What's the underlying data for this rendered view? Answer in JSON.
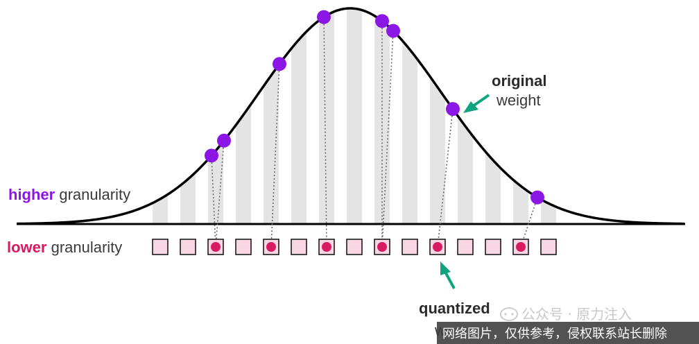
{
  "labels": {
    "higher_accent": "higher",
    "higher_rest": " granularity",
    "lower_accent": "lower",
    "lower_rest": " granularity",
    "original_line1": "original",
    "original_line2": "weight",
    "quantized_line1": "quantized",
    "quantized_line2": "w"
  },
  "watermark": {
    "account": "公众号 · 原力注入",
    "bar_text": "网络图片，仅供参考，侵权联系站长删除"
  },
  "colors": {
    "curve": "#000000",
    "stripe": "#e4e4e4",
    "original_dot": "#8b16e6",
    "quantized_dot": "#d81b60",
    "box_fill": "#f9d6e3",
    "box_stroke": "#1a1a1a",
    "arrow": "#10a37f",
    "higher_text": "#8b16e6",
    "lower_text": "#d81b60"
  },
  "diagram": {
    "bins": 15,
    "mapping": [
      {
        "original_bin": 1.85,
        "quantized_bin": 2
      },
      {
        "original_bin": 2.3,
        "quantized_bin": 2
      },
      {
        "original_bin": 4.3,
        "quantized_bin": 4
      },
      {
        "original_bin": 5.9,
        "quantized_bin": 6
      },
      {
        "original_bin": 8.0,
        "quantized_bin": 8
      },
      {
        "original_bin": 8.4,
        "quantized_bin": 8
      },
      {
        "original_bin": 10.55,
        "quantized_bin": 10
      },
      {
        "original_bin": 13.6,
        "quantized_bin": 13
      }
    ]
  }
}
